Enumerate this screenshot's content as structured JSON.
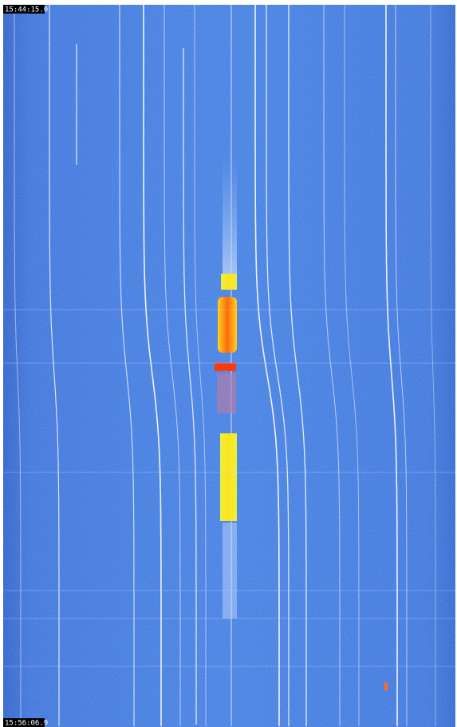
{
  "timestamps": {
    "start": "15:44:15.0",
    "end": "15:56:06.9"
  }
}
